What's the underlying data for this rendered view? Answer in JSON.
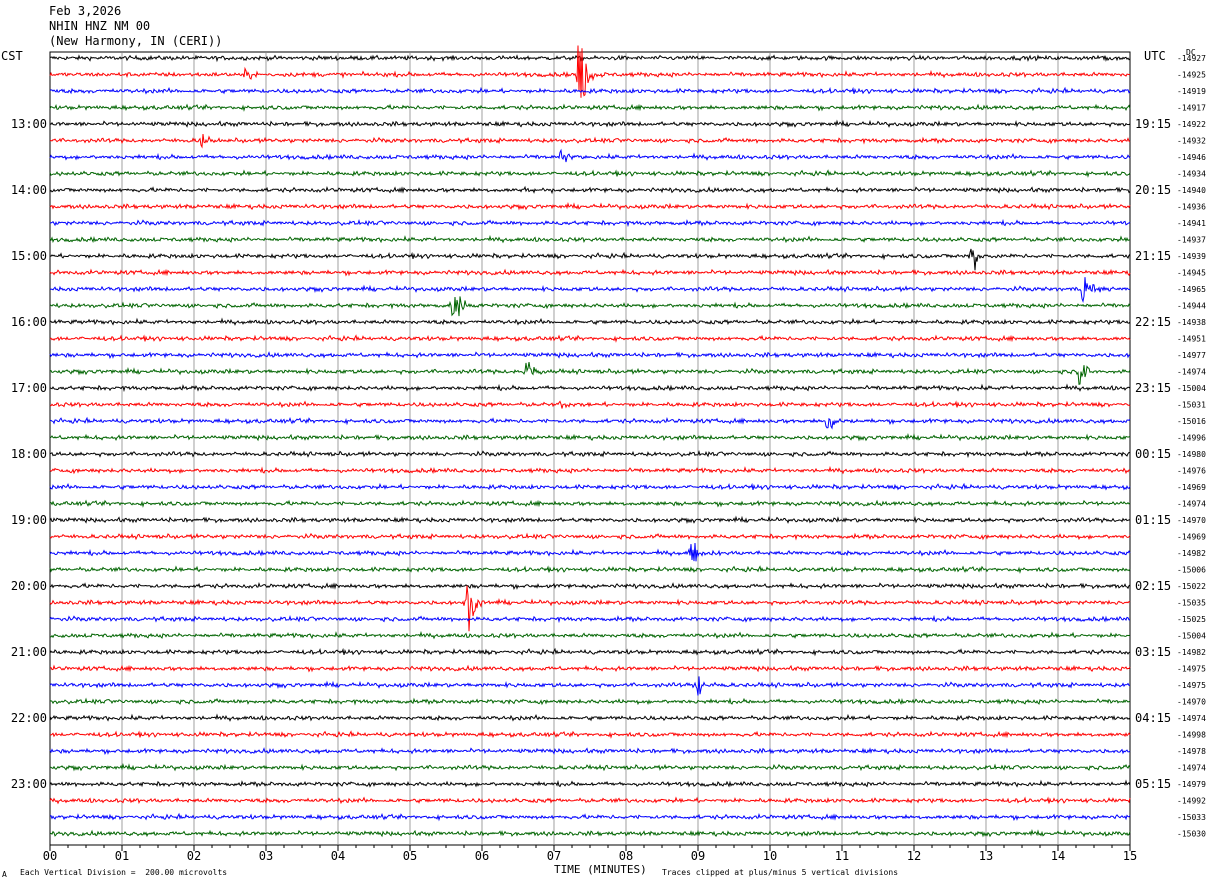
{
  "header": {
    "date": "Feb 3,2026",
    "station": "NHIN HNZ NM 00",
    "location": "(New Harmony, IN (CERI))"
  },
  "left_tz": "CST",
  "right_tz": "UTC",
  "dc_label": "DC",
  "footer": {
    "scale": "Each Vertical Division =  200.00 microvolts",
    "clip": "Traces clipped at plus/minus 5 vertical divisions",
    "mark": "A"
  },
  "colors": [
    "#000000",
    "#ff0000",
    "#0000ff",
    "#006400"
  ],
  "chart_data": {
    "type": "line",
    "title": "NHIN HNZ NM 00",
    "xlabel": "TIME (MINUTES)",
    "xlim": [
      0,
      15
    ],
    "x_ticks": [
      "00",
      "01",
      "02",
      "03",
      "04",
      "05",
      "06",
      "07",
      "08",
      "09",
      "10",
      "11",
      "12",
      "13",
      "14",
      "15"
    ],
    "left_hour_labels": [
      "13:00",
      "14:00",
      "15:00",
      "16:00",
      "17:00",
      "18:00",
      "19:00",
      "20:00",
      "21:00",
      "22:00",
      "23:00"
    ],
    "right_hour_labels": [
      "19:15",
      "20:15",
      "21:15",
      "22:15",
      "23:15",
      "00:15",
      "01:15",
      "02:15",
      "03:15",
      "04:15",
      "05:15"
    ],
    "dc_offsets": [
      -14927,
      -14925,
      -14919,
      -14917,
      -14922,
      -14932,
      -14946,
      -14934,
      -14940,
      -14936,
      -14941,
      -14937,
      -14939,
      -14945,
      -14965,
      -14944,
      -14938,
      -14951,
      -14977,
      -14974,
      -15004,
      -15031,
      -15016,
      -14996,
      -14980,
      -14976,
      -14969,
      -14974,
      -14970,
      -14969,
      -14982,
      -15006,
      -15022,
      -15035,
      -15025,
      -15004,
      -14982,
      -14975,
      -14975,
      -14970,
      -14974,
      -14998,
      -14978,
      -14974,
      -14979,
      -14992,
      -15033,
      -15030
    ],
    "events": [
      {
        "trace": 0,
        "minute": 14.6,
        "amp": 0.5
      },
      {
        "trace": 1,
        "minute": 2.7,
        "amp": 0.9
      },
      {
        "trace": 1,
        "minute": 7.35,
        "amp": 5.0
      },
      {
        "trace": 5,
        "minute": 2.1,
        "amp": 0.7
      },
      {
        "trace": 6,
        "minute": 7.1,
        "amp": 0.8
      },
      {
        "trace": 8,
        "minute": 6.6,
        "amp": 0.5
      },
      {
        "trace": 12,
        "minute": 12.8,
        "amp": 2.2
      },
      {
        "trace": 14,
        "minute": 14.35,
        "amp": 1.8
      },
      {
        "trace": 15,
        "minute": 5.6,
        "amp": 2.8
      },
      {
        "trace": 19,
        "minute": 6.6,
        "amp": 2.0
      },
      {
        "trace": 19,
        "minute": 14.3,
        "amp": 1.8
      },
      {
        "trace": 21,
        "minute": 7.05,
        "amp": 0.5
      },
      {
        "trace": 22,
        "minute": 10.8,
        "amp": 1.6
      },
      {
        "trace": 30,
        "minute": 8.9,
        "amp": 1.5
      },
      {
        "trace": 33,
        "minute": 5.8,
        "amp": 2.5
      },
      {
        "trace": 38,
        "minute": 9.0,
        "amp": 1.3
      }
    ]
  }
}
